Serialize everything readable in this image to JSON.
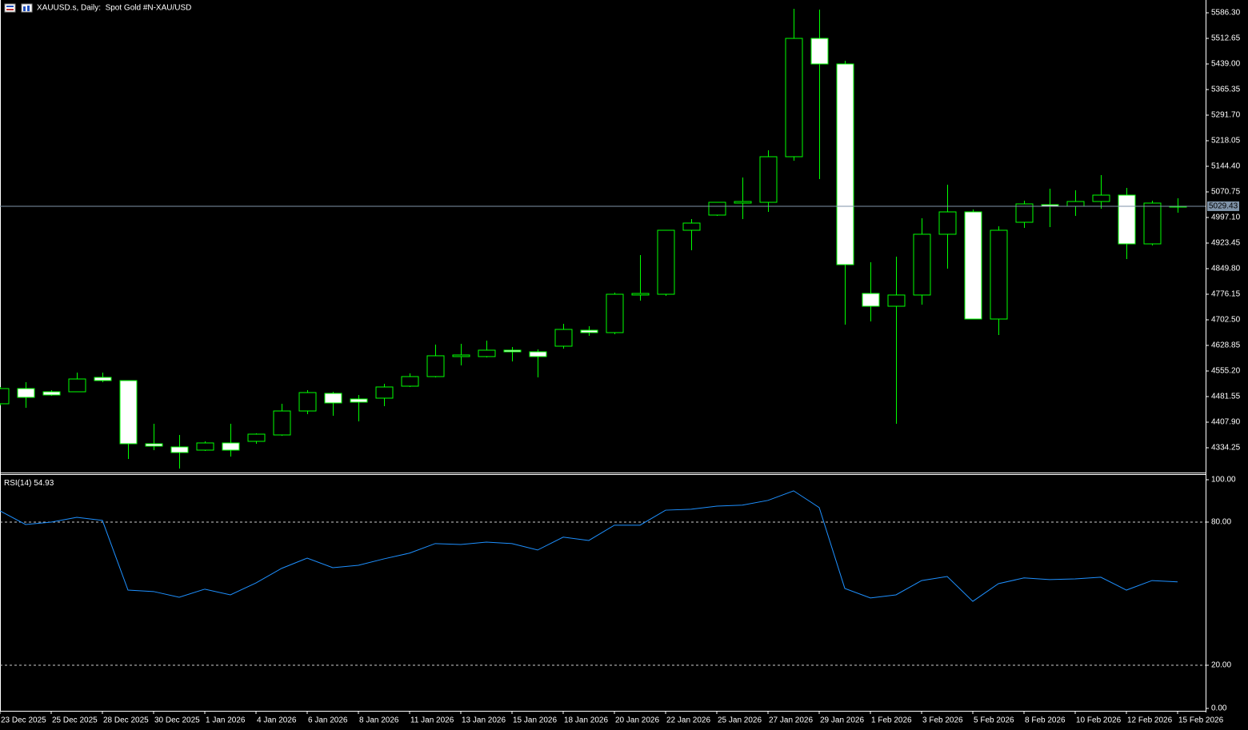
{
  "chart_data": [
    {
      "type": "candlestick",
      "title": "XAUUSD.s, Daily:  Spot Gold #N-XAU/USD",
      "categories": [
        "23 Dec 2025",
        null,
        "25 Dec 2025",
        null,
        "28 Dec 2025",
        null,
        "30 Dec 2025",
        null,
        "1 Jan 2026",
        null,
        "4 Jan 2026",
        null,
        "6 Jan 2026",
        null,
        "8 Jan 2026",
        null,
        "11 Jan 2026",
        null,
        "13 Jan 2026",
        null,
        "15 Jan 2026",
        null,
        "18 Jan 2026",
        null,
        "20 Jan 2026",
        null,
        "22 Jan 2026",
        null,
        "25 Jan 2026",
        null,
        "27 Jan 2026",
        null,
        "29 Jan 2026",
        null,
        "1 Feb 2026",
        null,
        "3 Feb 2026",
        null,
        "5 Feb 2026",
        null,
        "8 Feb 2026",
        null,
        "10 Feb 2026",
        null,
        "12 Feb 2026",
        null,
        "15 Feb 2026"
      ],
      "open": [
        4460.9,
        4504.6,
        4495.4,
        4495.4,
        4536.8,
        4527.6,
        4345.8,
        4336.6,
        4327.4,
        4348.1,
        4352.7,
        4371.1,
        4440.1,
        4490.8,
        4474.7,
        4477.0,
        4511.5,
        4539.1,
        4596.7,
        4596.7,
        4615.1,
        4610.5,
        4626.6,
        4672.6,
        4665.7,
        4773.9,
        4776.1,
        4960.3,
        5004.0,
        5038.5,
        5040.8,
        5172.0,
        5512.6,
        5439.0,
        4778.4,
        4741.6,
        4773.9,
        4948.8,
        5013.2,
        4704.8,
        4983.3,
        5033.9,
        5029.3,
        5043.1,
        5061.5,
        4921.1,
        5027.0
      ],
      "high": [
        4509.2,
        4523.0,
        4500.0,
        4550.6,
        4550.6,
        4527.6,
        4403.3,
        4371.1,
        4352.7,
        4403.3,
        4375.7,
        4460.9,
        4500.0,
        4495.4,
        4486.2,
        4518.4,
        4548.3,
        4631.2,
        4633.5,
        4642.7,
        4624.3,
        4617.4,
        4691.0,
        4684.1,
        4780.7,
        4888.9,
        4960.3,
        4992.5,
        5040.8,
        5112.2,
        5190.4,
        5597.8,
        5595.5,
        5448.2,
        4868.2,
        4884.3,
        4994.8,
        5091.5,
        5020.1,
        4971.8,
        5045.4,
        5080.0,
        5075.4,
        5119.1,
        5082.3,
        5045.4,
        5052.3
      ],
      "low": [
        4456.3,
        4449.4,
        4483.9,
        4495.4,
        4523.0,
        4302.1,
        4327.4,
        4274.5,
        4325.1,
        4309.0,
        4345.8,
        4368.8,
        4430.9,
        4426.4,
        4410.2,
        4454.0,
        4509.2,
        4536.8,
        4571.4,
        4594.4,
        4582.9,
        4536.8,
        4619.7,
        4656.5,
        4661.1,
        4757.8,
        4771.6,
        4902.8,
        5001.7,
        4992.5,
        5013.2,
        5160.5,
        5107.6,
        4688.7,
        4697.9,
        4403.3,
        4746.3,
        4849.8,
        4704.8,
        4658.8,
        4967.2,
        4969.5,
        5001.7,
        5022.4,
        4877.4,
        4916.6,
        5010.9
      ],
      "close": [
        4504.6,
        4479.3,
        4486.2,
        4532.2,
        4527.6,
        4345.8,
        4338.9,
        4320.5,
        4348.1,
        4327.4,
        4373.4,
        4440.1,
        4493.1,
        4463.2,
        4465.5,
        4509.2,
        4539.1,
        4599.0,
        4601.3,
        4615.1,
        4610.5,
        4596.7,
        4674.9,
        4665.7,
        4776.1,
        4778.4,
        4960.3,
        4981.0,
        5040.8,
        5043.1,
        5172.0,
        5512.6,
        5439.0,
        4861.3,
        4741.6,
        4773.9,
        4948.8,
        5013.2,
        4704.8,
        4960.3,
        5036.2,
        5029.3,
        5043.1,
        5061.5,
        4921.1,
        5038.5,
        5029.43
      ],
      "bull_color": "#000000",
      "bear_color": "#ffffff",
      "outline_color": "#00ff00",
      "ylim": [
        4262.9,
        5623.1
      ],
      "yticks": [
        {
          "value": 5586.3,
          "label": "5586.30"
        },
        {
          "value": 5512.65,
          "label": "5512.65"
        },
        {
          "value": 5439.0,
          "label": "5439.00"
        },
        {
          "value": 5365.35,
          "label": "5365.35"
        },
        {
          "value": 5291.7,
          "label": "5291.70"
        },
        {
          "value": 5218.05,
          "label": "5218.05"
        },
        {
          "value": 5144.4,
          "label": "5144.40"
        },
        {
          "value": 5070.75,
          "label": "5070.75"
        },
        {
          "value": 4997.1,
          "label": "4997.10"
        },
        {
          "value": 4923.45,
          "label": "4923.45"
        },
        {
          "value": 4849.8,
          "label": "4849.80"
        },
        {
          "value": 4776.15,
          "label": "4776.15"
        },
        {
          "value": 4702.5,
          "label": "4702.50"
        },
        {
          "value": 4628.85,
          "label": "4628.85"
        },
        {
          "value": 4555.2,
          "label": "4555.20"
        },
        {
          "value": 4481.55,
          "label": "4481.55"
        },
        {
          "value": 4407.9,
          "label": "4407.90"
        },
        {
          "value": 4334.25,
          "label": "4334.25"
        }
      ]
    },
    {
      "type": "line",
      "title": "RSI(14)",
      "color": "#1e90ff",
      "values": [
        84.7,
        79.0,
        80.0,
        82.0,
        80.7,
        51.5,
        50.9,
        48.5,
        51.9,
        49.5,
        54.5,
        60.6,
        64.9,
        60.9,
        61.9,
        64.6,
        67.0,
        71.0,
        70.6,
        71.6,
        71.0,
        68.3,
        73.7,
        72.3,
        78.7,
        78.7,
        85.0,
        85.4,
        86.7,
        87.1,
        89.1,
        93.1,
        86.1,
        52.2,
        48.2,
        49.5,
        55.5,
        57.2,
        46.8,
        54.2,
        56.6,
        55.9,
        56.2,
        56.9,
        51.5,
        55.5,
        54.93
      ],
      "ylim": [
        0,
        100
      ],
      "yticks": [
        {
          "value": 100,
          "label": "100.00"
        },
        {
          "value": 80,
          "label": "80.00"
        },
        {
          "value": 20,
          "label": "20.00"
        },
        {
          "value": 0,
          "label": "0.00"
        }
      ],
      "levels": [
        80,
        20
      ]
    }
  ]
}
